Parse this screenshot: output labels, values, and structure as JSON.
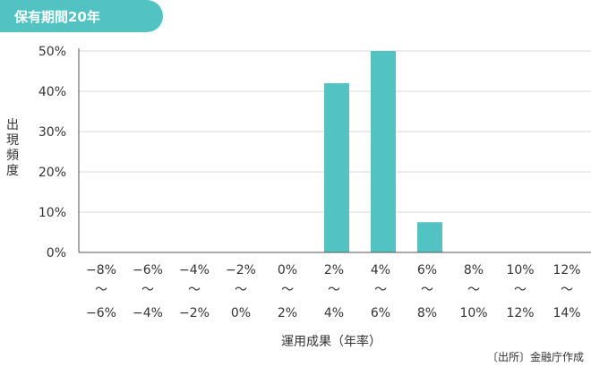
{
  "colors": {
    "bar": "#52c3c2",
    "tag": "#52c3c2",
    "axis": "#555555",
    "grid": "#d9d9d9"
  },
  "chart_data": {
    "type": "bar",
    "title": "保有期間20年",
    "xlabel": "運用成果（年率）",
    "ylabel": "出現頻度",
    "source": "〔出所〕金融庁作成",
    "ylim": [
      0,
      50
    ],
    "yticks": [
      "0%",
      "10%",
      "20%",
      "30%",
      "40%",
      "50%"
    ],
    "grid": true,
    "categories": [
      {
        "from": "−8%",
        "sep": "〜",
        "to": "−6%"
      },
      {
        "from": "−6%",
        "sep": "〜",
        "to": "−4%"
      },
      {
        "from": "−4%",
        "sep": "〜",
        "to": "−2%"
      },
      {
        "from": "−2%",
        "sep": "〜",
        "to": "0%"
      },
      {
        "from": "0%",
        "sep": "〜",
        "to": "2%"
      },
      {
        "from": "2%",
        "sep": "〜",
        "to": "4%"
      },
      {
        "from": "4%",
        "sep": "〜",
        "to": "6%"
      },
      {
        "from": "6%",
        "sep": "〜",
        "to": "8%"
      },
      {
        "from": "8%",
        "sep": "〜",
        "to": "10%"
      },
      {
        "from": "10%",
        "sep": "〜",
        "to": "12%"
      },
      {
        "from": "12%",
        "sep": "〜",
        "to": "14%"
      }
    ],
    "values": [
      0,
      0,
      0,
      0,
      0,
      42,
      50,
      7.5,
      0,
      0,
      0
    ]
  }
}
